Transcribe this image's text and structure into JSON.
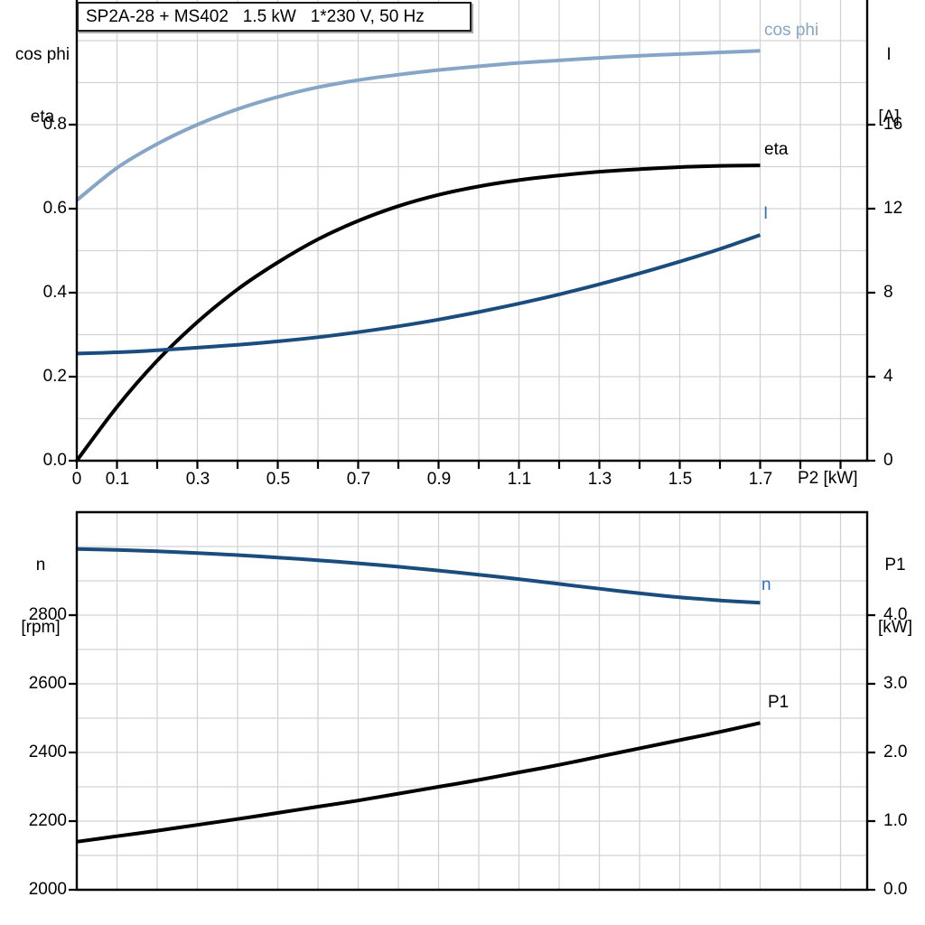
{
  "title_box": "SP2A-28 + MS402   1.5 kW   1*230 V, 50 Hz",
  "colors": {
    "cos_phi_curve": "#87a5c6",
    "navy_curve": "#1a4d7d",
    "blue_label": "#2e74b5",
    "black": "#000000",
    "grid": "#d3d3d3",
    "axis": "#000000"
  },
  "top_chart": {
    "left_axis_title": {
      "line1": "cos phi",
      "line2": "eta"
    },
    "right_axis_title": {
      "line1": "I",
      "line2": "[A]"
    },
    "x_axis_title": "P2 [kW]",
    "left_ticks": [
      {
        "v": 0.0,
        "label": "0.0"
      },
      {
        "v": 0.2,
        "label": "0.2"
      },
      {
        "v": 0.4,
        "label": "0.4"
      },
      {
        "v": 0.6,
        "label": "0.6"
      },
      {
        "v": 0.8,
        "label": "0.8"
      }
    ],
    "right_ticks": [
      {
        "v": 0,
        "label": "0"
      },
      {
        "v": 4,
        "label": "4"
      },
      {
        "v": 8,
        "label": "8"
      },
      {
        "v": 12,
        "label": "12"
      },
      {
        "v": 16,
        "label": "16"
      }
    ],
    "x_labeled_ticks": [
      {
        "v": 0.0,
        "label": "0"
      },
      {
        "v": 0.1,
        "label": "0.1"
      },
      {
        "v": 0.3,
        "label": "0.3"
      },
      {
        "v": 0.5,
        "label": "0.5"
      },
      {
        "v": 0.7,
        "label": "0.7"
      },
      {
        "v": 0.9,
        "label": "0.9"
      },
      {
        "v": 1.1,
        "label": "1.1"
      },
      {
        "v": 1.3,
        "label": "1.3"
      },
      {
        "v": 1.5,
        "label": "1.5"
      },
      {
        "v": 1.7,
        "label": "1.7"
      }
    ],
    "curve_labels": {
      "cos_phi": "cos phi",
      "eta": "eta",
      "current": "I"
    }
  },
  "bottom_chart": {
    "left_axis_title": {
      "line1": "n",
      "line2": "[rpm]"
    },
    "right_axis_title": {
      "line1": "P1",
      "line2": "[kW]"
    },
    "left_ticks": [
      {
        "v": 2000,
        "label": "2000"
      },
      {
        "v": 2200,
        "label": "2200"
      },
      {
        "v": 2400,
        "label": "2400"
      },
      {
        "v": 2600,
        "label": "2600"
      },
      {
        "v": 2800,
        "label": "2800"
      }
    ],
    "right_ticks": [
      {
        "v": 0.0,
        "label": "0.0"
      },
      {
        "v": 1.0,
        "label": "1.0"
      },
      {
        "v": 2.0,
        "label": "2.0"
      },
      {
        "v": 3.0,
        "label": "3.0"
      },
      {
        "v": 4.0,
        "label": "4.0"
      }
    ],
    "curve_labels": {
      "n": "n",
      "p1": "P1"
    }
  },
  "chart_data": [
    {
      "type": "line",
      "title": "SP2A-28 + MS402   1.5 kW   1*230 V, 50 Hz",
      "xlabel": "P2 [kW]",
      "xlim": [
        0,
        1.97
      ],
      "left_axis": {
        "labels": [
          "cos phi",
          "eta"
        ],
        "ylim": [
          0,
          1.08
        ],
        "tick_step": 0.2
      },
      "right_axis": {
        "labels": [
          "I",
          "[A]"
        ],
        "unit": "A",
        "ylim": [
          0,
          21.6
        ],
        "tick_step": 4
      },
      "grid": true,
      "x": [
        0,
        0.1,
        0.2,
        0.3,
        0.4,
        0.5,
        0.6,
        0.7,
        0.8,
        0.9,
        1.0,
        1.1,
        1.2,
        1.3,
        1.4,
        1.5,
        1.6,
        1.7
      ],
      "series": [
        {
          "name": "cos phi",
          "axis": "left",
          "values": [
            0.62,
            0.697,
            0.754,
            0.8,
            0.837,
            0.866,
            0.889,
            0.906,
            0.919,
            0.93,
            0.939,
            0.947,
            0.953,
            0.959,
            0.964,
            0.968,
            0.972,
            0.976
          ]
        },
        {
          "name": "eta",
          "axis": "left",
          "values": [
            0.0,
            0.128,
            0.238,
            0.33,
            0.408,
            0.472,
            0.527,
            0.571,
            0.606,
            0.633,
            0.653,
            0.668,
            0.679,
            0.688,
            0.694,
            0.699,
            0.702,
            0.703
          ]
        },
        {
          "name": "I",
          "axis": "right",
          "unit": "A",
          "values": [
            5.1,
            5.16,
            5.26,
            5.38,
            5.52,
            5.68,
            5.88,
            6.12,
            6.4,
            6.72,
            7.08,
            7.48,
            7.92,
            8.4,
            8.92,
            9.48,
            10.08,
            10.75
          ]
        }
      ]
    },
    {
      "type": "line",
      "title": "",
      "xlabel": "P2 [kW]",
      "xlim": [
        0,
        1.97
      ],
      "left_axis": {
        "labels": [
          "n",
          "[rpm]"
        ],
        "unit": "rpm",
        "ylim": [
          2000,
          3100
        ],
        "tick_step": 200
      },
      "right_axis": {
        "labels": [
          "P1",
          "[kW]"
        ],
        "unit": "kW",
        "ylim": [
          0,
          5.5
        ],
        "tick_step": 1.0
      },
      "grid": true,
      "x": [
        0,
        0.1,
        0.2,
        0.3,
        0.4,
        0.5,
        0.6,
        0.7,
        0.8,
        0.9,
        1.0,
        1.1,
        1.2,
        1.3,
        1.4,
        1.5,
        1.6,
        1.7
      ],
      "series": [
        {
          "name": "n",
          "axis": "left",
          "unit": "rpm",
          "values": [
            2993,
            2990,
            2986,
            2981,
            2975,
            2968,
            2960,
            2951,
            2941,
            2930,
            2918,
            2905,
            2891,
            2877,
            2864,
            2852,
            2843,
            2836
          ]
        },
        {
          "name": "P1",
          "axis": "right",
          "unit": "kW",
          "values": [
            0.7,
            0.78,
            0.86,
            0.945,
            1.03,
            1.12,
            1.21,
            1.3,
            1.4,
            1.5,
            1.6,
            1.71,
            1.82,
            1.94,
            2.06,
            2.18,
            2.3,
            2.43
          ]
        }
      ]
    }
  ]
}
